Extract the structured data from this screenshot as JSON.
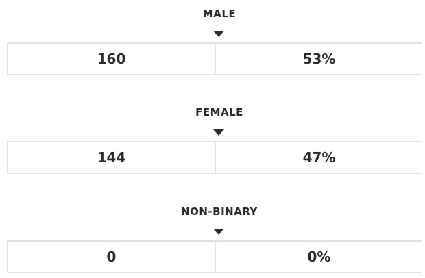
{
  "groups": [
    {
      "label": "MALE",
      "count": "160",
      "percent": "53%"
    },
    {
      "label": "FEMALE",
      "count": "144",
      "percent": "47%"
    },
    {
      "label": "NON-BINARY",
      "count": "0",
      "percent": "0%"
    }
  ]
}
